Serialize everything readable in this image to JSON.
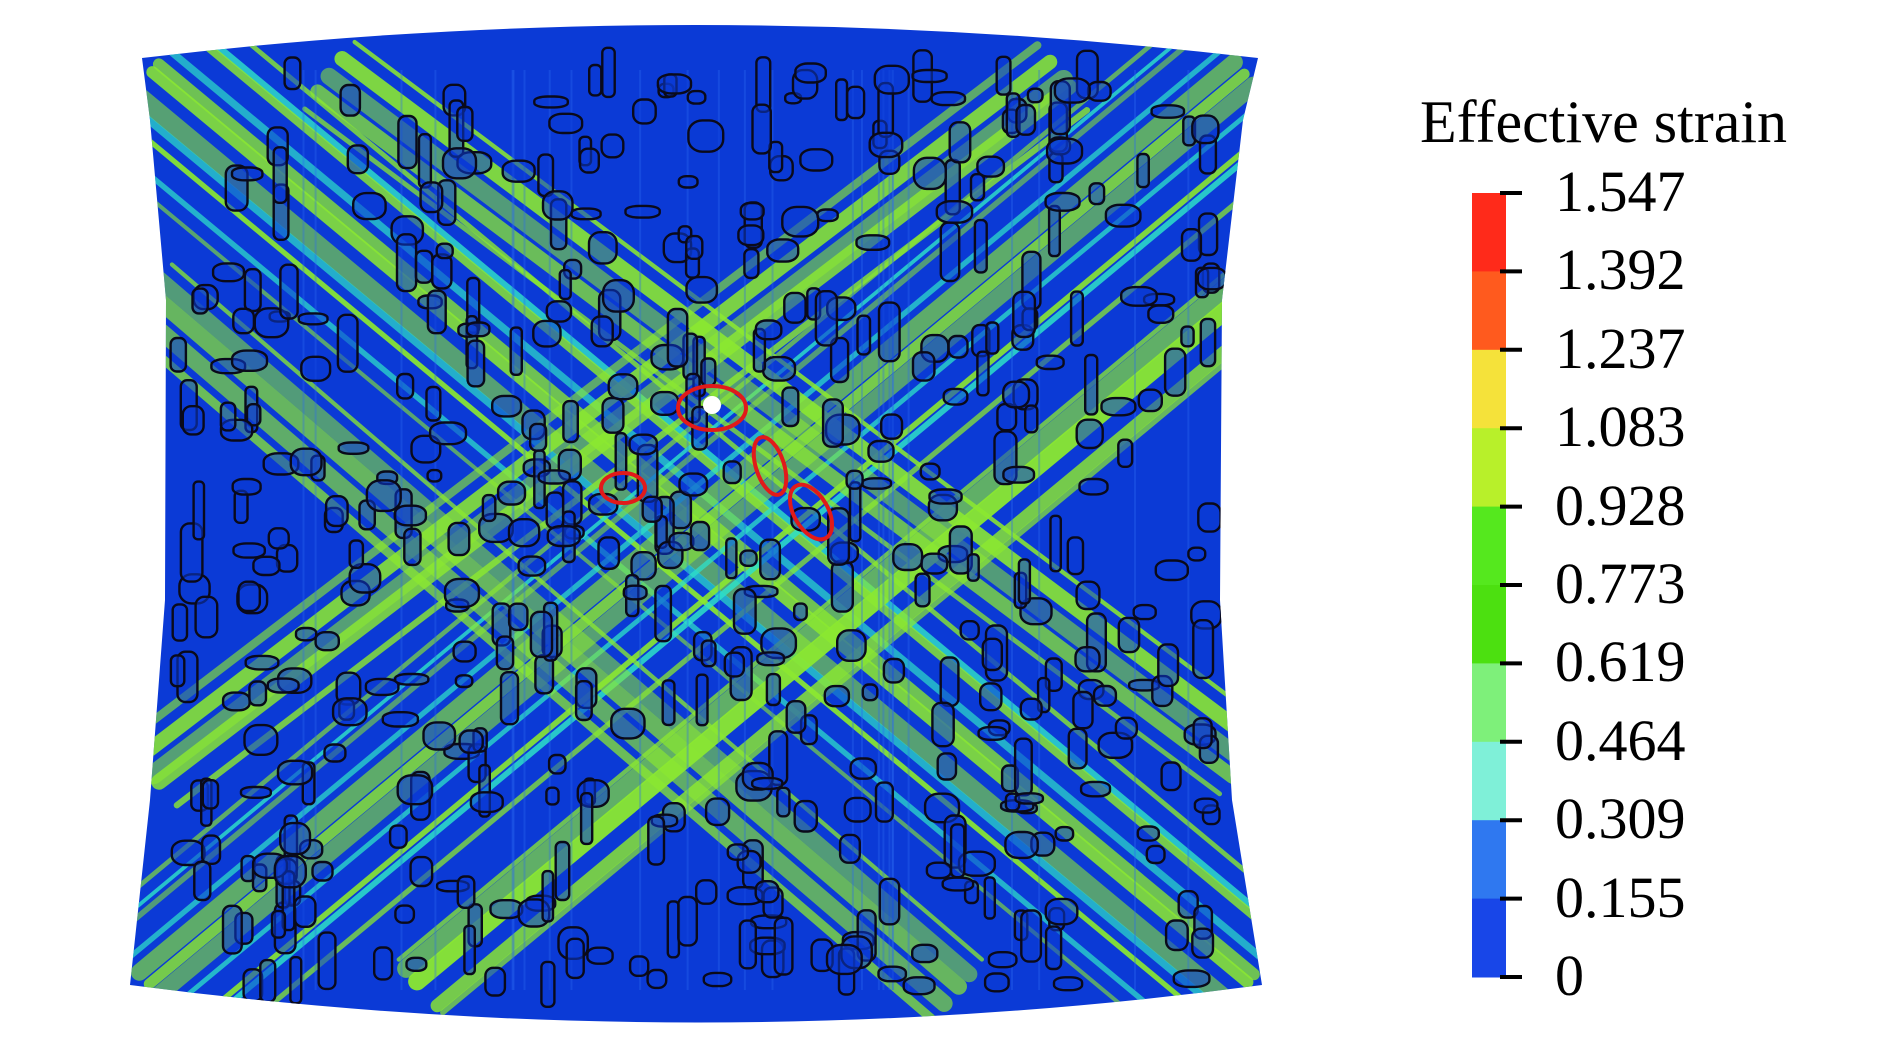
{
  "legend": {
    "title": "Effective strain",
    "levels": [
      "1.547",
      "1.392",
      "1.237",
      "1.083",
      "0.928",
      "0.773",
      "0.619",
      "0.464",
      "0.309",
      "0.155",
      "0"
    ],
    "colors": [
      "#ff2a1a",
      "#ff5a1e",
      "#f5e23a",
      "#b8f02a",
      "#55e81e",
      "#4ce010",
      "#7ef07a",
      "#7ff0d8",
      "#2f78f0",
      "#1846e8"
    ]
  },
  "contour": {
    "background_color": "#0b3ad6",
    "band_color": "#8be830",
    "secondary_band_color": "#2ee0c8",
    "particle_outline_color": "#0a0a1a",
    "highlight_color": "#e11a1a",
    "void_color": "#ffffff",
    "highlighted_regions": 4
  }
}
